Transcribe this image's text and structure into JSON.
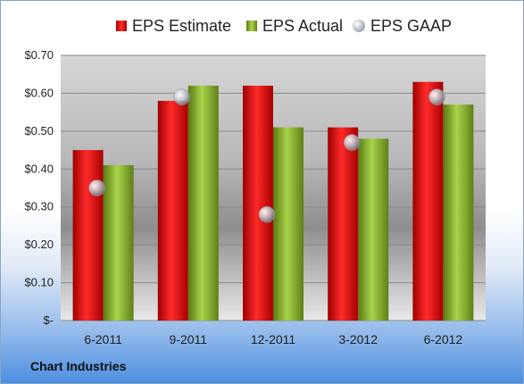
{
  "chart_data": {
    "type": "bar",
    "categories": [
      "6-2011",
      "9-2011",
      "12-2011",
      "3-2012",
      "6-2012"
    ],
    "series": [
      {
        "name": "EPS Estimate",
        "kind": "bar",
        "color": "#d41c1c",
        "values": [
          0.45,
          0.58,
          0.62,
          0.51,
          0.63
        ]
      },
      {
        "name": "EPS Actual",
        "kind": "bar",
        "color": "#8fbc2f",
        "values": [
          0.41,
          0.62,
          0.51,
          0.48,
          0.57
        ]
      },
      {
        "name": "EPS GAAP",
        "kind": "marker",
        "color": "#b9bfc8",
        "values": [
          0.35,
          0.59,
          0.28,
          0.47,
          0.59
        ]
      }
    ],
    "ylim": [
      0,
      0.7
    ],
    "yticks": [
      0,
      0.1,
      0.2,
      0.3,
      0.4,
      0.5,
      0.6,
      0.7
    ],
    "ytick_labels": [
      "$-",
      "$0.10",
      "$0.20",
      "$0.30",
      "$0.40",
      "$0.50",
      "$0.60",
      "$0.70"
    ],
    "legend_position": "top",
    "grid": true,
    "title": "",
    "xlabel": "",
    "ylabel": ""
  },
  "legend": {
    "estimate": "EPS Estimate",
    "actual": "EPS Actual",
    "gaap": "EPS GAAP"
  },
  "footer": {
    "company": "Chart Industries"
  }
}
